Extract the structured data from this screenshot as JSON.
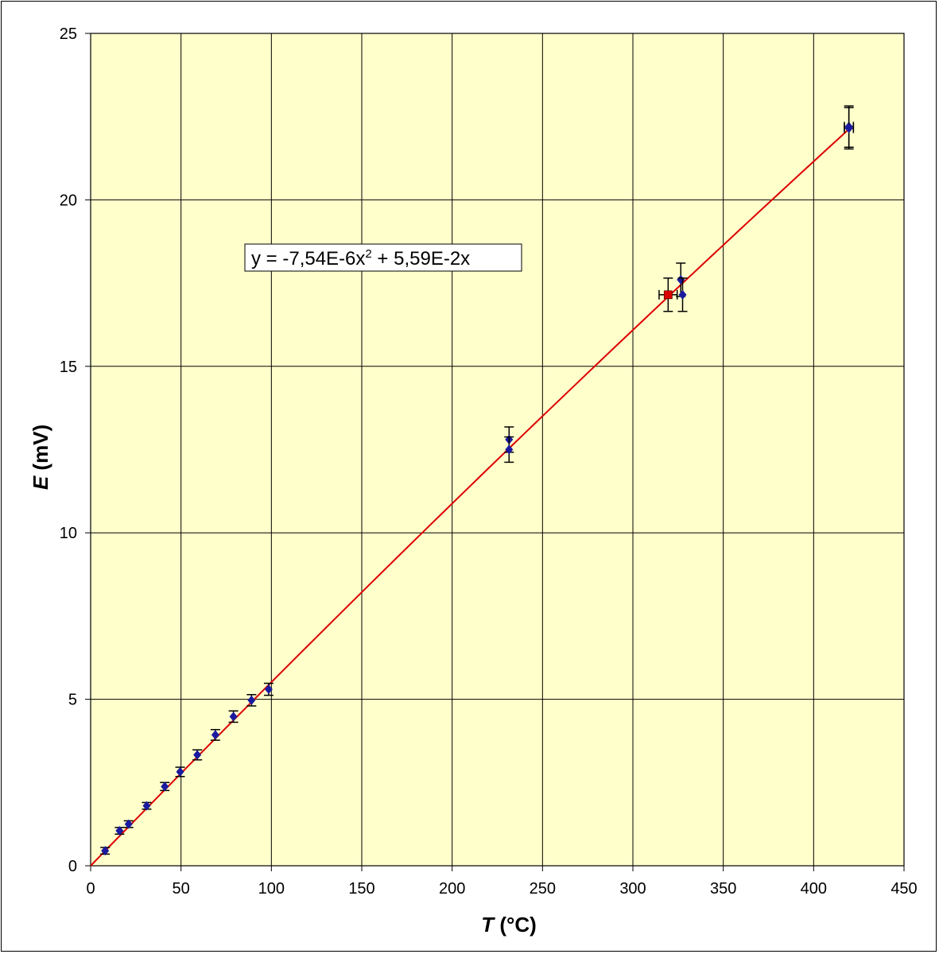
{
  "chart_data": {
    "type": "scatter",
    "xlabel": {
      "var": "T",
      "unit": "(°C)"
    },
    "ylabel": {
      "var": "E",
      "unit": "(mV)"
    },
    "xlim": [
      0,
      450
    ],
    "ylim": [
      0,
      25
    ],
    "xticks": [
      0,
      50,
      100,
      150,
      200,
      250,
      300,
      350,
      400,
      450
    ],
    "yticks": [
      0,
      5,
      10,
      15,
      20,
      25
    ],
    "grid": true,
    "plot_background": "#ffffcc",
    "trendline": {
      "type": "polynomial",
      "a2": -7.54e-06,
      "a1": 0.0559,
      "a0": 0,
      "x_range": [
        0,
        420
      ],
      "color": "#dd0000",
      "equation": {
        "lhs": "y = -7,54E-6x",
        "sup": "2",
        "rhs": " + 5,59E-2x"
      }
    },
    "series": [
      {
        "marker_color": "#1a1aa0",
        "points": [
          {
            "x": 8,
            "y": 0.45,
            "ey": 0.1,
            "ex": 0
          },
          {
            "x": 16,
            "y": 1.05,
            "ey": 0.1,
            "ex": 0
          },
          {
            "x": 21,
            "y": 1.25,
            "ey": 0.1,
            "ex": 0
          },
          {
            "x": 31,
            "y": 1.8,
            "ey": 0.1,
            "ex": 0
          },
          {
            "x": 41,
            "y": 2.38,
            "ey": 0.12,
            "ex": 0
          },
          {
            "x": 49.5,
            "y": 2.82,
            "ey": 0.14,
            "ex": 0
          },
          {
            "x": 59,
            "y": 3.33,
            "ey": 0.15,
            "ex": 0
          },
          {
            "x": 69,
            "y": 3.93,
            "ey": 0.16,
            "ex": 0
          },
          {
            "x": 79,
            "y": 4.48,
            "ey": 0.17,
            "ex": 0
          },
          {
            "x": 89,
            "y": 4.97,
            "ey": 0.17,
            "ex": 0
          },
          {
            "x": 98.5,
            "y": 5.3,
            "ey": 0.18,
            "ex": 0
          },
          {
            "x": 231.5,
            "y": 12.8,
            "ey": 0.38,
            "ex": 0
          },
          {
            "x": 231.5,
            "y": 12.5,
            "ey": 0.38,
            "ex": 0
          },
          {
            "x": 326.5,
            "y": 17.6,
            "ey": 0.5,
            "ex": 0
          },
          {
            "x": 327.5,
            "y": 17.15,
            "ey": 0.5,
            "ex": 0
          },
          {
            "x": 419.5,
            "y": 22.2,
            "ey": 0.62,
            "ex": 2.5
          },
          {
            "x": 419.5,
            "y": 22.15,
            "ey": 0.62,
            "ex": 2.5
          }
        ]
      },
      {
        "marker_color": "#dd0000",
        "points": [
          {
            "x": 319.5,
            "y": 17.15,
            "ey": 0.5,
            "ex": 5
          }
        ]
      }
    ]
  }
}
